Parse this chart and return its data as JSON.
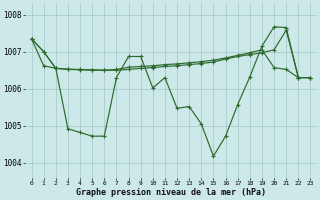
{
  "bg_color": "#cce8e8",
  "grid_color": "#aacccc",
  "line_color": "#2d6a2d",
  "title": "Graphe pression niveau de la mer (hPa)",
  "xlim": [
    -0.5,
    23.5
  ],
  "ylim": [
    1003.6,
    1008.3
  ],
  "yticks": [
    1004,
    1005,
    1006,
    1007,
    1008
  ],
  "xticks": [
    0,
    1,
    2,
    3,
    4,
    5,
    6,
    7,
    8,
    9,
    10,
    11,
    12,
    13,
    14,
    15,
    16,
    17,
    18,
    19,
    20,
    21,
    22,
    23
  ],
  "series1_x": [
    0,
    1,
    2,
    3,
    4,
    5,
    6,
    7,
    8,
    9,
    10,
    11,
    12,
    13,
    14,
    15,
    16,
    17,
    18,
    19,
    20,
    21,
    22,
    23
  ],
  "series1_y": [
    1007.35,
    1007.0,
    1006.55,
    1004.92,
    1004.82,
    1004.72,
    1004.72,
    1006.3,
    1006.87,
    1006.87,
    1006.02,
    1006.3,
    1005.47,
    1005.52,
    1005.05,
    1004.18,
    1004.72,
    1005.57,
    1006.32,
    1007.15,
    1007.67,
    1007.65,
    1006.3,
    1006.3
  ],
  "series2_x": [
    0,
    1,
    2,
    3,
    4,
    5,
    6,
    7,
    8,
    9,
    10,
    11,
    12,
    13,
    14,
    15,
    16,
    17,
    18,
    19,
    20,
    21,
    22,
    23
  ],
  "series2_y": [
    1007.35,
    1006.62,
    1006.55,
    1006.52,
    1006.51,
    1006.5,
    1006.5,
    1006.52,
    1006.58,
    1006.6,
    1006.62,
    1006.65,
    1006.67,
    1006.7,
    1006.73,
    1006.77,
    1006.83,
    1006.9,
    1006.97,
    1007.05,
    1006.57,
    1006.52,
    1006.3,
    1006.3
  ],
  "series3_x": [
    0,
    1,
    2,
    3,
    4,
    5,
    6,
    7,
    8,
    9,
    10,
    11,
    12,
    13,
    14,
    15,
    16,
    17,
    18,
    19,
    20,
    21,
    22,
    23
  ],
  "series3_y": [
    1007.35,
    1007.0,
    1006.55,
    1006.53,
    1006.52,
    1006.51,
    1006.5,
    1006.5,
    1006.52,
    1006.55,
    1006.57,
    1006.6,
    1006.62,
    1006.65,
    1006.68,
    1006.72,
    1006.8,
    1006.87,
    1006.92,
    1006.97,
    1007.05,
    1007.58,
    1006.3,
    1006.3
  ]
}
